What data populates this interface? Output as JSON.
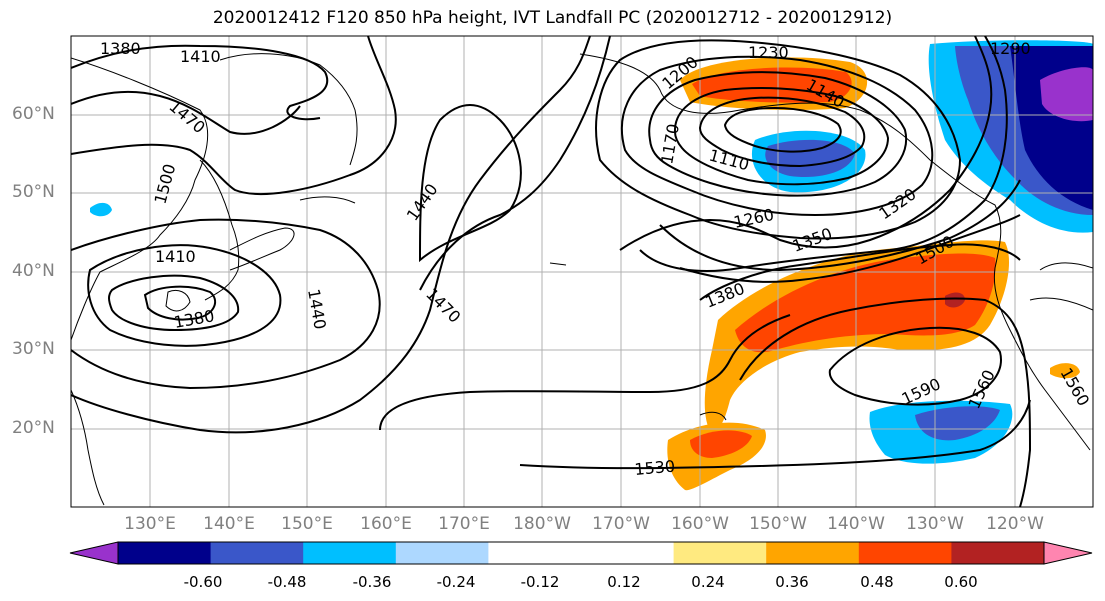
{
  "title": "2020012412 F120 850 hPa height, IVT Landfall PC (2020012712 - 2020012912)",
  "lat_labels": [
    "60°N",
    "50°N",
    "40°N",
    "30°N",
    "20°N"
  ],
  "lon_labels": [
    "130°E",
    "140°E",
    "150°E",
    "160°E",
    "170°E",
    "180°W",
    "170°W",
    "160°W",
    "150°W",
    "140°W",
    "130°W",
    "120°W"
  ],
  "contour_labels": [
    "1380",
    "1410",
    "1470",
    "1500",
    "1410",
    "1380",
    "1440",
    "1440",
    "1470",
    "1230",
    "1200",
    "1140",
    "1170",
    "1110",
    "1260",
    "1320",
    "1350",
    "1380",
    "1500",
    "1290",
    "1590",
    "1560",
    "1530",
    "1560"
  ],
  "colorbar": {
    "colors": [
      "#9932cc",
      "#00008b",
      "#3a57c9",
      "#00bfff",
      "#add8ff",
      "#ffffff",
      "#ffffff",
      "#ffea80",
      "#ffa500",
      "#ff4500",
      "#b22222",
      "#ff85b0"
    ],
    "tick_labels": [
      "-0.60",
      "-0.48",
      "-0.36",
      "-0.24",
      "-0.12",
      "0.12",
      "0.24",
      "0.36",
      "0.48",
      "0.60"
    ]
  }
}
